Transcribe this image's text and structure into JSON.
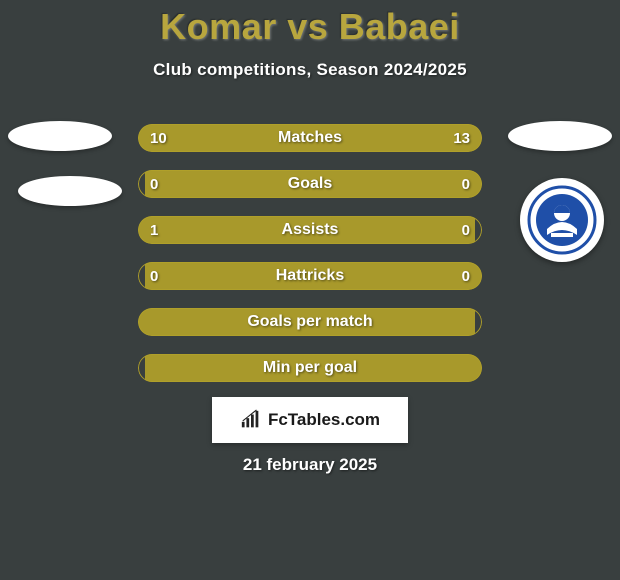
{
  "background_color": "#393f3f",
  "title": "Komar vs Babaei",
  "title_color": "#b8a63e",
  "subtitle": "Club competitions, Season 2024/2025",
  "subtitle_color": "#ffffff",
  "row_label_color": "#ffffff",
  "row_value_color": "#ffffff",
  "row_border_color": "#b0a02a",
  "row_fill_color": "#a8992b",
  "row_bg_color": "#393f3f",
  "side_ellipse_color": "#ffffff",
  "date_text": "21 february 2025",
  "date_color": "#ffffff",
  "brand_text": "FcTables.com",
  "club_badge": {
    "ring": "#1f4fa8",
    "inner": "#ffffff"
  },
  "rows": [
    {
      "label": "Matches",
      "left": "10",
      "right": "13",
      "left_pct": 40,
      "right_pct": 60
    },
    {
      "label": "Goals",
      "left": "0",
      "right": "0",
      "left_pct": 0,
      "right_pct": 98
    },
    {
      "label": "Assists",
      "left": "1",
      "right": "0",
      "left_pct": 98,
      "right_pct": 0
    },
    {
      "label": "Hattricks",
      "left": "0",
      "right": "0",
      "left_pct": 0,
      "right_pct": 98
    },
    {
      "label": "Goals per match",
      "left": "",
      "right": "",
      "left_pct": 98,
      "right_pct": 0
    },
    {
      "label": "Min per goal",
      "left": "",
      "right": "",
      "left_pct": 0,
      "right_pct": 98
    }
  ]
}
